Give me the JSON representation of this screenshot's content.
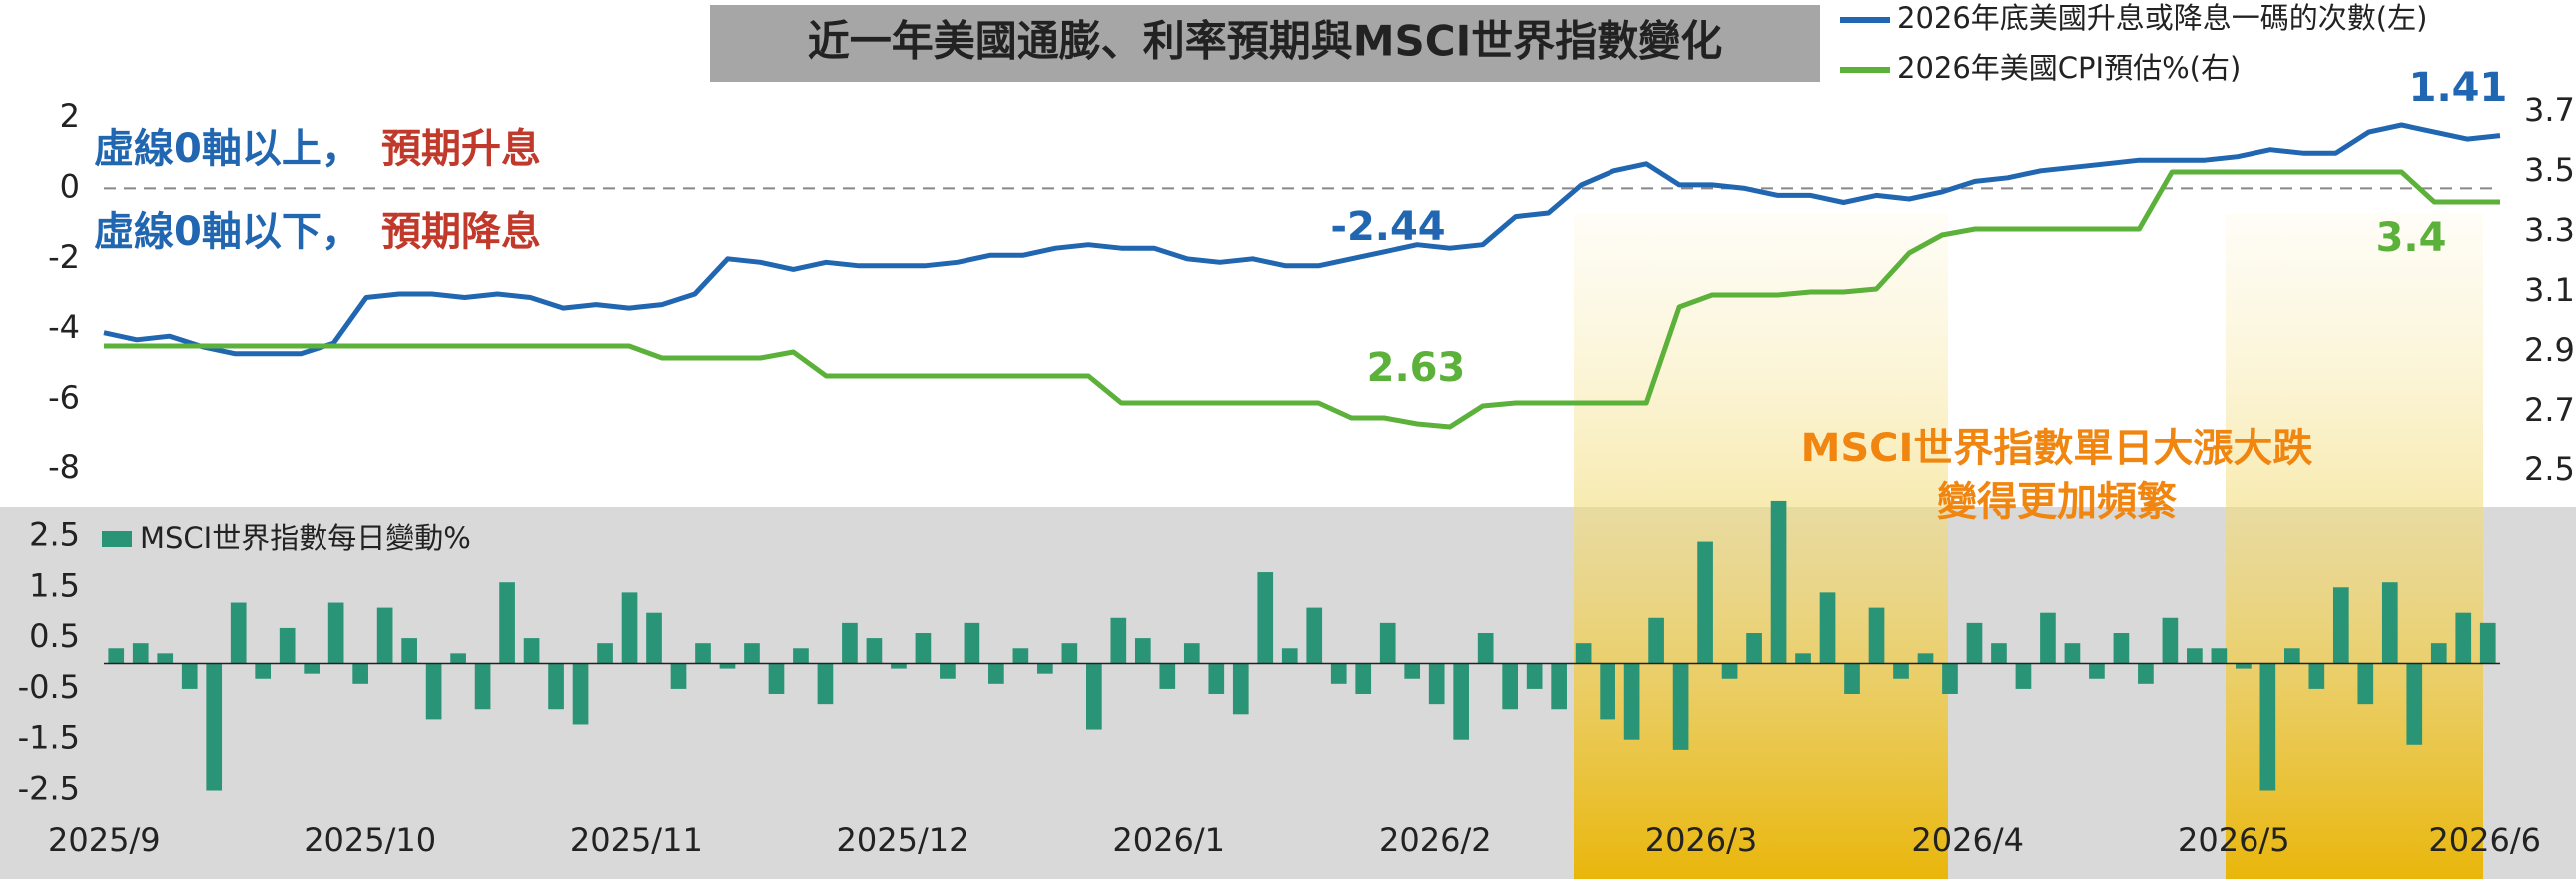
{
  "chart_data": [
    {
      "type": "line",
      "title": "近一年美國通膨、利率預期與MSCI世界指數變化",
      "series": [
        {
          "name": "2026年底美國升息或降息一碼的次數(左)",
          "color": "#2166b0",
          "axis": "y",
          "values": [
            -4.1,
            -4.3,
            -4.2,
            -4.5,
            -4.7,
            -4.7,
            -4.7,
            -4.4,
            -3.1,
            -3.0,
            -3.0,
            -3.1,
            -3.0,
            -3.1,
            -3.4,
            -3.3,
            -3.4,
            -3.3,
            -3.0,
            -2.0,
            -2.1,
            -2.3,
            -2.1,
            -2.2,
            -2.2,
            -2.2,
            -2.1,
            -1.9,
            -1.9,
            -1.7,
            -1.6,
            -1.7,
            -1.7,
            -2.0,
            -2.1,
            -2.0,
            -2.2,
            -2.2,
            -2.0,
            -1.8,
            -1.6,
            -1.7,
            -1.6,
            -0.8,
            -0.7,
            0.1,
            0.5,
            0.7,
            0.1,
            0.1,
            0.0,
            -0.2,
            -0.2,
            -0.4,
            -0.2,
            -0.3,
            -0.1,
            0.2,
            0.3,
            0.5,
            0.6,
            0.7,
            0.8,
            0.8,
            0.8,
            0.9,
            1.1,
            1.0,
            1.0,
            1.6,
            1.8,
            1.6,
            1.4,
            1.5
          ]
        },
        {
          "name": "2026年美國CPI預估%(右)",
          "color": "#5bb13a",
          "axis": "y2",
          "values": [
            2.92,
            2.92,
            2.92,
            2.92,
            2.92,
            2.92,
            2.92,
            2.92,
            2.92,
            2.92,
            2.92,
            2.92,
            2.92,
            2.92,
            2.92,
            2.92,
            2.92,
            2.88,
            2.88,
            2.88,
            2.88,
            2.9,
            2.82,
            2.82,
            2.82,
            2.82,
            2.82,
            2.82,
            2.82,
            2.82,
            2.82,
            2.73,
            2.73,
            2.73,
            2.73,
            2.73,
            2.73,
            2.73,
            2.68,
            2.68,
            2.66,
            2.65,
            2.72,
            2.73,
            2.73,
            2.73,
            2.73,
            2.73,
            3.05,
            3.09,
            3.09,
            3.09,
            3.1,
            3.1,
            3.11,
            3.23,
            3.29,
            3.31,
            3.31,
            3.31,
            3.31,
            3.31,
            3.31,
            3.5,
            3.5,
            3.5,
            3.5,
            3.5,
            3.5,
            3.5,
            3.5,
            3.4,
            3.4,
            3.4
          ]
        }
      ],
      "ylim": [
        -8,
        2
      ],
      "yticks": [
        2,
        0,
        -2,
        -4,
        -6,
        -8
      ],
      "y2lim": [
        2.5,
        3.7
      ],
      "y2ticks": [
        3.7,
        3.5,
        3.3,
        3.1,
        2.9,
        2.7,
        2.5
      ],
      "legend": "top-right",
      "annotations": [
        "虛線0軸以上，",
        "預期升息",
        "虛線0軸以下，",
        "預期降息",
        "-2.44",
        "2.63",
        "1.41",
        "3.4",
        "MSCI世界指數單日大漲大跌",
        "變得更加頻繁"
      ]
    },
    {
      "type": "bar",
      "series": [
        {
          "name": "MSCI世界指數每日變動%",
          "color": "#2a9477",
          "values": [
            0.3,
            0.4,
            0.2,
            -0.5,
            -2.5,
            1.2,
            -0.3,
            0.7,
            -0.2,
            1.2,
            -0.4,
            1.1,
            0.5,
            -1.1,
            0.2,
            -0.9,
            1.6,
            0.5,
            -0.9,
            -1.2,
            0.4,
            1.4,
            1.0,
            -0.5,
            0.4,
            -0.1,
            0.4,
            -0.6,
            0.3,
            -0.8,
            0.8,
            0.5,
            -0.1,
            0.6,
            -0.3,
            0.8,
            -0.4,
            0.3,
            -0.2,
            0.4,
            -1.3,
            0.9,
            0.5,
            -0.5,
            0.4,
            -0.6,
            -1.0,
            1.8,
            0.3,
            1.1,
            -0.4,
            -0.6,
            0.8,
            -0.3,
            -0.8,
            -1.5,
            0.6,
            -0.9,
            -0.5,
            -0.9,
            0.4,
            -1.1,
            -1.5,
            0.9,
            -1.7,
            2.4,
            -0.3,
            0.6,
            3.2,
            0.2,
            1.4,
            -0.6,
            1.1,
            -0.3,
            0.2,
            -0.6,
            0.8,
            0.4,
            -0.5,
            1.0,
            0.4,
            -0.3,
            0.6,
            -0.4,
            0.9,
            0.3,
            0.3,
            -0.1,
            -2.5,
            0.3,
            -0.5,
            1.5,
            -0.8,
            1.6,
            -1.6,
            0.4,
            1.0,
            0.8
          ]
        }
      ],
      "ylim": [
        -3.1,
        3.1
      ],
      "yticks": [
        2.5,
        1.5,
        0.5,
        -0.5,
        -1.5,
        -2.5
      ],
      "x_axis_labels": [
        "2025/9",
        "2025/10",
        "2025/11",
        "2025/12",
        "2026/1",
        "2026/2",
        "2026/3",
        "2026/4",
        "2026/5",
        "2026/6"
      ]
    }
  ]
}
